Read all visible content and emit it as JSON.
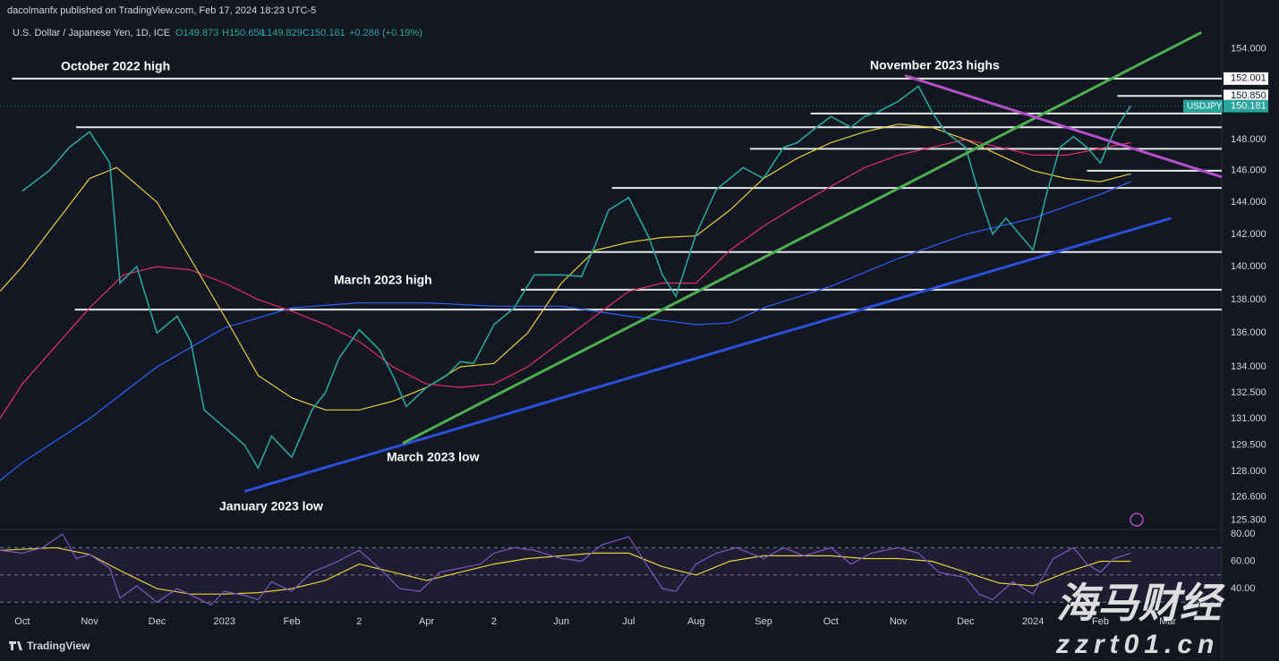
{
  "header": {
    "publisher": "dacolmanfx published on TradingView.com, Feb 17, 2024 18:23 UTC-5",
    "footer": "TradingView"
  },
  "watermark": {
    "title": "海马财经",
    "url": "zzrt01.cn"
  },
  "chart_data": [
    {
      "type": "line",
      "title": "U.S. Dollar / Japanese Yen, 1D, ICE",
      "ohlc": [
        "O149.873",
        "H150.650",
        "L149.829",
        "C150.181"
      ],
      "change": "+0.286 (+0.19%)",
      "log_scale": true,
      "xlim": [
        -0.33,
        17.8
      ],
      "xticks": [
        {
          "value": 0,
          "label": "Oct"
        },
        {
          "value": 1,
          "label": "Nov"
        },
        {
          "value": 2,
          "label": "Dec"
        },
        {
          "value": 3,
          "label": "2023"
        },
        {
          "value": 4,
          "label": "Feb"
        },
        {
          "value": 5,
          "label": "2"
        },
        {
          "value": 6,
          "label": "Apr"
        },
        {
          "value": 7,
          "label": "2"
        },
        {
          "value": 8,
          "label": "Jun"
        },
        {
          "value": 9,
          "label": "Jul"
        },
        {
          "value": 10,
          "label": "Aug"
        },
        {
          "value": 11,
          "label": "Sep"
        },
        {
          "value": 12,
          "label": "Oct"
        },
        {
          "value": 13,
          "label": "Nov"
        },
        {
          "value": 14,
          "label": "Dec"
        },
        {
          "value": 15,
          "label": "2024"
        },
        {
          "value": 16,
          "label": "Feb"
        },
        {
          "value": 17,
          "label": "Mar"
        }
      ],
      "ylim": [
        124.8,
        155.6
      ],
      "yticks": [
        {
          "value": 154,
          "label": "154.000"
        },
        {
          "value": 148,
          "label": "148.000"
        },
        {
          "value": 146,
          "label": "146.000"
        },
        {
          "value": 144,
          "label": "144.000"
        },
        {
          "value": 142,
          "label": "142.000"
        },
        {
          "value": 140,
          "label": "140.000"
        },
        {
          "value": 138,
          "label": "138.000"
        },
        {
          "value": 136,
          "label": "136.000"
        },
        {
          "value": 134,
          "label": "134.000"
        },
        {
          "value": 132.5,
          "label": "132.500"
        },
        {
          "value": 131,
          "label": "131.000"
        },
        {
          "value": 129.5,
          "label": "129.500"
        },
        {
          "value": 128,
          "label": "128.000"
        },
        {
          "value": 126.6,
          "label": "126.600"
        },
        {
          "value": 125.3,
          "label": "125.300"
        }
      ],
      "price_labels": [
        {
          "value": 152.001,
          "label": "152.001"
        },
        {
          "value": 150.85,
          "label": "150.850"
        }
      ],
      "last_price": {
        "value": 150.181,
        "label": "150.181",
        "color": "#26a69a"
      },
      "series": [
        {
          "name": "USDJPY",
          "color": "#26a69a",
          "x": [
            0,
            0.4,
            0.7,
            1.0,
            1.3,
            1.45,
            1.7,
            2.0,
            2.3,
            2.5,
            2.7,
            3.0,
            3.3,
            3.5,
            3.7,
            4.0,
            4.3,
            4.5,
            4.7,
            5.0,
            5.3,
            5.5,
            5.7,
            6.0,
            6.3,
            6.5,
            6.7,
            7.0,
            7.3,
            7.6,
            8.0,
            8.3,
            8.5,
            8.7,
            9.0,
            9.3,
            9.5,
            9.7,
            10.0,
            10.3,
            10.5,
            10.7,
            11.0,
            11.3,
            11.5,
            11.7,
            12.0,
            12.3,
            12.5,
            12.7,
            13.0,
            13.3,
            13.5,
            13.7,
            14.0,
            14.2,
            14.4,
            14.6,
            14.8,
            15.0,
            15.2,
            15.4,
            15.6,
            15.8,
            16.0,
            16.2,
            16.45
          ],
          "values": [
            144.7,
            146,
            147.5,
            148.5,
            146.5,
            139,
            140,
            136,
            137,
            135.5,
            131.5,
            130.5,
            129.5,
            128.2,
            130,
            128.8,
            131.5,
            132.5,
            134.5,
            136.2,
            135,
            133.5,
            131.7,
            132.8,
            133.5,
            134.3,
            134.2,
            136.5,
            137.5,
            139.5,
            139.5,
            139.4,
            141.3,
            143.5,
            144.3,
            141.8,
            139.5,
            138.2,
            142,
            144.8,
            145.5,
            146.2,
            145.5,
            147.5,
            147.8,
            148.5,
            149.5,
            148.8,
            149.5,
            149.8,
            150.5,
            151.5,
            149.8,
            148.5,
            147.5,
            144.5,
            142,
            143,
            142,
            141,
            144.5,
            147.5,
            148.2,
            147.5,
            146.5,
            148.5,
            150.2
          ]
        },
        {
          "color": "#e6d13a",
          "x": [
            -0.33,
            0,
            1,
            1.4,
            2,
            3,
            3.5,
            4,
            4.5,
            5,
            5.5,
            6,
            6.5,
            7,
            7.5,
            8,
            8.5,
            9,
            9.5,
            10,
            10.5,
            11,
            11.5,
            12,
            12.5,
            13,
            13.5,
            14,
            14.5,
            15,
            15.5,
            16,
            16.45
          ],
          "values": [
            138.5,
            140,
            145.5,
            146.2,
            144,
            137,
            133.5,
            132.2,
            131.5,
            131.5,
            132,
            132.8,
            134,
            134.2,
            136,
            139,
            141,
            141.5,
            141.8,
            141.9,
            143.5,
            145.5,
            146.8,
            147.8,
            148.5,
            149,
            148.8,
            148,
            147,
            146,
            145.5,
            145.3,
            145.8
          ]
        },
        {
          "color": "#e0306a",
          "x": [
            -0.33,
            0,
            1,
            1.5,
            2,
            2.5,
            3,
            3.5,
            4,
            4.5,
            5,
            5.5,
            6,
            6.5,
            7,
            7.5,
            8,
            8.5,
            9,
            9.5,
            10,
            10.5,
            11,
            11.5,
            12,
            12.5,
            13,
            13.5,
            14,
            14.5,
            15,
            15.5,
            16.45
          ],
          "values": [
            131,
            133,
            137.5,
            139.5,
            140,
            139.8,
            139,
            138,
            137.3,
            136.5,
            135.5,
            134,
            133,
            132.8,
            133,
            134,
            135.5,
            137,
            138.5,
            139,
            139,
            141,
            142.5,
            143.8,
            145,
            146.2,
            147,
            147.5,
            148,
            147.5,
            147,
            147,
            147.8
          ]
        },
        {
          "color": "#2962ff",
          "x": [
            -0.33,
            0,
            1,
            2,
            3,
            4,
            5,
            6,
            7,
            8,
            9,
            10,
            10.5,
            11,
            12,
            13,
            14,
            15,
            16,
            16.45
          ],
          "values": [
            127.5,
            128.5,
            131,
            134,
            136.3,
            137.5,
            137.8,
            137.8,
            137.6,
            137.6,
            137,
            136.5,
            136.6,
            137.5,
            138.8,
            140.5,
            142,
            143,
            144.5,
            145.3
          ]
        }
      ],
      "levels": [
        {
          "value": 152.0,
          "x0": -0.15
        },
        {
          "value": 148.8,
          "x0": 0.8
        },
        {
          "value": 137.4,
          "x0": 0.78
        },
        {
          "value": 138.6,
          "x0": 7.4
        },
        {
          "value": 140.9,
          "x0": 7.6
        },
        {
          "value": 144.9,
          "x0": 8.75
        },
        {
          "value": 147.4,
          "x0": 10.8
        },
        {
          "value": 149.7,
          "x0": 11.7
        },
        {
          "value": 146.0,
          "x0": 15.8
        },
        {
          "value": 150.85,
          "x0": 16.25
        }
      ],
      "trendlines": [
        {
          "color": "#2a4fd8",
          "x": [
            3.3,
            17.05
          ],
          "values": [
            126.9,
            143.0
          ]
        },
        {
          "color": "#4caf50",
          "x": [
            5.65,
            17.5
          ],
          "values": [
            129.6,
            155.1
          ]
        },
        {
          "color": "#b24fc9",
          "x": [
            13.1,
            17.8
          ],
          "values": [
            152.2,
            145.6
          ]
        }
      ],
      "annotations": [
        "October 2022 high",
        "November 2023 highs",
        "March 2023 high",
        "March 2023 low",
        "January 2023 low"
      ]
    },
    {
      "type": "line",
      "xlim": [
        -0.33,
        17.8
      ],
      "ylim": [
        24.3,
        83.3
      ],
      "yticks": [
        {
          "value": 80,
          "label": "80.00"
        },
        {
          "value": 60,
          "label": "60.00"
        },
        {
          "value": 40,
          "label": "40.00"
        }
      ],
      "band": [
        30,
        70
      ],
      "guides": [
        70,
        50,
        30
      ],
      "series": [
        {
          "color": "#7e57c2",
          "x": [
            -0.33,
            0,
            0.3,
            0.6,
            0.8,
            1.0,
            1.3,
            1.45,
            1.7,
            2.0,
            2.3,
            2.6,
            2.8,
            3.0,
            3.3,
            3.5,
            3.7,
            4.0,
            4.3,
            4.6,
            5.0,
            5.3,
            5.6,
            5.9,
            6.2,
            6.5,
            6.8,
            7.0,
            7.3,
            7.6,
            8.0,
            8.3,
            8.6,
            9.0,
            9.3,
            9.5,
            9.7,
            10.0,
            10.3,
            10.6,
            11.0,
            11.3,
            11.6,
            12.0,
            12.3,
            12.6,
            13.0,
            13.3,
            13.6,
            14.0,
            14.2,
            14.4,
            14.7,
            15.0,
            15.3,
            15.6,
            15.8,
            16.0,
            16.2,
            16.45
          ],
          "values": [
            68,
            66,
            70,
            80,
            62,
            65,
            55,
            33,
            42,
            30,
            40,
            33,
            28,
            38,
            35,
            32,
            45,
            38,
            52,
            58,
            68,
            55,
            40,
            38,
            52,
            55,
            58,
            66,
            70,
            68,
            62,
            60,
            72,
            78,
            55,
            40,
            38,
            58,
            66,
            70,
            62,
            70,
            64,
            70,
            58,
            66,
            70,
            66,
            52,
            48,
            36,
            32,
            45,
            36,
            62,
            70,
            58,
            52,
            62,
            66
          ]
        },
        {
          "color": "#e6d13a",
          "x": [
            -0.33,
            0.5,
            1.0,
            1.5,
            2.0,
            2.5,
            3.0,
            3.5,
            4.0,
            4.5,
            5.0,
            5.5,
            6.0,
            6.5,
            7.0,
            7.5,
            8.0,
            8.5,
            9.0,
            9.5,
            10.0,
            10.5,
            11.0,
            11.5,
            12.0,
            12.5,
            13.0,
            13.5,
            14.0,
            14.5,
            15.0,
            15.5,
            16.0,
            16.45
          ],
          "values": [
            68,
            70,
            65,
            52,
            40,
            36,
            36,
            37,
            40,
            46,
            58,
            52,
            46,
            52,
            58,
            62,
            64,
            66,
            66,
            56,
            50,
            60,
            64,
            64,
            64,
            62,
            62,
            60,
            52,
            44,
            42,
            52,
            60,
            60
          ]
        }
      ]
    }
  ]
}
